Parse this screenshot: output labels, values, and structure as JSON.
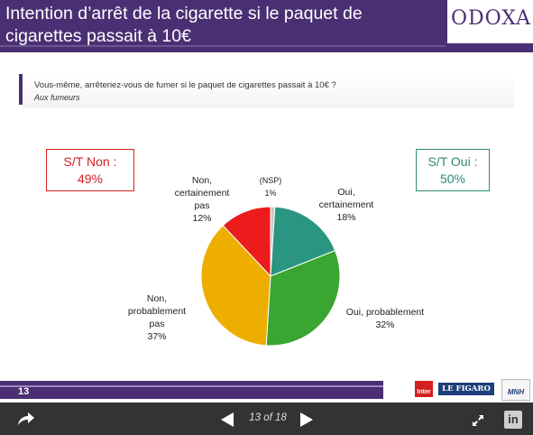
{
  "slide": {
    "title": "Intention d’arrêt de la cigarette si le paquet de cigarettes passait à 10€",
    "logo": "ODOXA",
    "question": "Vous-même, arrêteriez-vous de fumer si le paquet de cigarettes passait à 10€ ?",
    "subtitle": "Aux fumeurs",
    "st_non": {
      "label": "S/T Non :",
      "value": "49%"
    },
    "st_oui": {
      "label": "S/T Oui :",
      "value": "50%"
    },
    "slide_number": "13",
    "footer_logos": {
      "inter": "Inter",
      "figaro": "LE FIGARO",
      "mnh": "MNH"
    }
  },
  "chart_data": {
    "type": "pie",
    "slices": [
      {
        "label_lines": [
          "(NSP)",
          "1%"
        ],
        "value": 1,
        "color": "#c8c8c8"
      },
      {
        "label_lines": [
          "Oui,",
          "certainement",
          "18%"
        ],
        "value": 18,
        "color": "#2a9580"
      },
      {
        "label_lines": [
          "Oui, probablement",
          "32%"
        ],
        "value": 32,
        "color": "#3aa530"
      },
      {
        "label_lines": [
          "Non,",
          "probablement",
          "pas",
          "37%"
        ],
        "value": 37,
        "color": "#eeae00"
      },
      {
        "label_lines": [
          "Non,",
          "certainement",
          "pas",
          "12%"
        ],
        "value": 12,
        "color": "#ec1c1c"
      }
    ]
  },
  "viewer": {
    "page_indicator": "13 of 18",
    "colors": {
      "bar": "#333333",
      "accent": "#4b2f73"
    },
    "icons": [
      "share-icon",
      "prev-arrow-icon",
      "next-arrow-icon",
      "expand-icon",
      "linkedin-icon"
    ]
  }
}
